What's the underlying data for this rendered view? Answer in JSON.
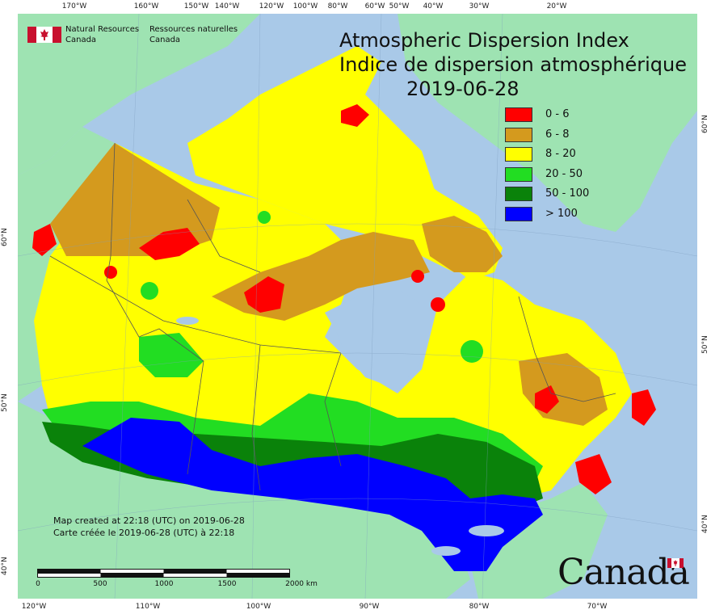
{
  "title": {
    "en": "Atmospheric Dispersion Index",
    "fr": "Indice de dispersion atmosphérique",
    "date": "2019-06-28"
  },
  "agency": {
    "en_line1": "Natural Resources",
    "en_line2": "Canada",
    "fr_line1": "Ressources naturelles",
    "fr_line2": "Canada"
  },
  "legend": [
    {
      "label": "0 - 6",
      "color": "#ff0000"
    },
    {
      "label": "6 - 8",
      "color": "#d49a1e"
    },
    {
      "label": "8 - 20",
      "color": "#ffff00"
    },
    {
      "label": "20 - 50",
      "color": "#22dd22"
    },
    {
      "label": "50 - 100",
      "color": "#0a820a"
    },
    {
      "label": "> 100",
      "color": "#0000ff"
    }
  ],
  "map_colors": {
    "ocean": "#a9c9e8",
    "foreign_land": "#9ee3b2",
    "lakes": "#a9c9e8",
    "borders": "#555555"
  },
  "footer": {
    "en": "Map created at 22:18 (UTC) on 2019-06-28",
    "fr": "Carte créée le 2019-06-28 (UTC) à 22:18"
  },
  "scale": {
    "labels": [
      "0",
      "500",
      "1000",
      "1500",
      "2000 km"
    ]
  },
  "wordmark": "Canada",
  "ticks": {
    "top": [
      "170°W",
      "160°W",
      "150°W",
      "140°W",
      "120°W",
      "100°W",
      "80°W",
      "60°W",
      "50°W",
      "40°W",
      "30°W",
      "20°W"
    ],
    "bottom": [
      "120°W",
      "110°W",
      "100°W",
      "90°W",
      "80°W",
      "70°W"
    ],
    "left": [
      "60°N",
      "50°N",
      "40°N"
    ],
    "right": [
      "60°N",
      "50°N",
      "40°N"
    ]
  }
}
